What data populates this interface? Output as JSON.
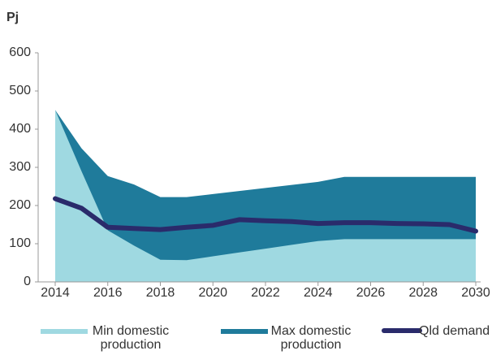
{
  "chart_data": {
    "type": "area",
    "y_label": "Pj",
    "x": [
      2014,
      2015,
      2016,
      2017,
      2018,
      2019,
      2020,
      2021,
      2022,
      2023,
      2024,
      2025,
      2026,
      2027,
      2028,
      2029,
      2030
    ],
    "series": [
      {
        "name": "Min domestic production",
        "color": "#9fd9e1",
        "kind": "area",
        "values": [
          450,
          290,
          135,
          95,
          58,
          57,
          67,
          77,
          87,
          97,
          107,
          112,
          112,
          112,
          112,
          112,
          112
        ]
      },
      {
        "name": "Max domestic production",
        "color": "#1f7b9b",
        "kind": "area",
        "values": [
          450,
          350,
          277,
          255,
          222,
          222,
          230,
          238,
          246,
          254,
          262,
          275,
          275,
          275,
          275,
          275,
          275
        ]
      },
      {
        "name": "Qld demand",
        "color": "#2a2b6b",
        "kind": "line",
        "values": [
          218,
          193,
          143,
          140,
          137,
          143,
          148,
          163,
          160,
          158,
          153,
          155,
          155,
          153,
          152,
          150,
          133
        ]
      }
    ],
    "xlim": [
      2014,
      2030
    ],
    "xticks": [
      2014,
      2016,
      2018,
      2020,
      2022,
      2024,
      2026,
      2028,
      2030
    ],
    "ylim": [
      0,
      600
    ],
    "yticks": [
      0,
      100,
      200,
      300,
      400,
      500,
      600
    ],
    "legend": "bottom"
  }
}
